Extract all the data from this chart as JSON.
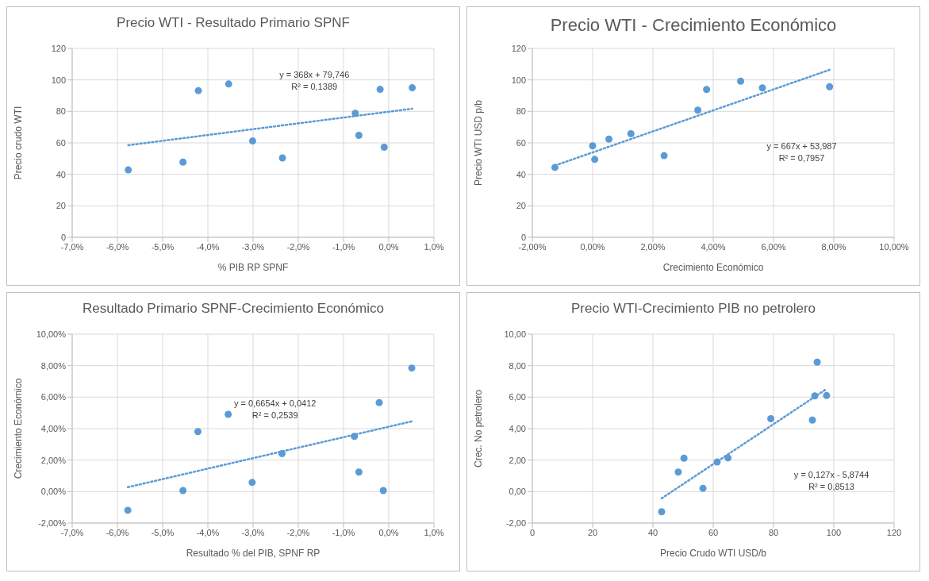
{
  "chart_data": [
    {
      "type": "scatter",
      "title": "Precio WTI - Resultado Primario SPNF",
      "xlabel": "% PIB RP SPNF",
      "ylabel": "Precio crudo WTI",
      "grid": true,
      "xlim": [
        -7,
        1
      ],
      "xticks": [
        {
          "value": -7,
          "label": "-7,0%"
        },
        {
          "value": -6,
          "label": "-6,0%"
        },
        {
          "value": -5,
          "label": "-5,0%"
        },
        {
          "value": -4,
          "label": "-4,0%"
        },
        {
          "value": -3,
          "label": "-3,0%"
        },
        {
          "value": -2,
          "label": "-2,0%"
        },
        {
          "value": -1,
          "label": "-1,0%"
        },
        {
          "value": 0,
          "label": "0,0%"
        },
        {
          "value": 1,
          "label": "1,0%"
        }
      ],
      "ylim": [
        0,
        120
      ],
      "yticks": [
        0,
        20,
        40,
        60,
        80,
        100,
        120
      ],
      "annotations": [
        "y = 368x + 79,746",
        "R² = 0,1389"
      ],
      "series": [
        {
          "marker": "circle",
          "color": "#5b9bd5",
          "x": [
            -5.76,
            -4.55,
            -4.21,
            -3.54,
            -3.01,
            -2.35,
            -0.74,
            -0.66,
            -0.19,
            -0.1,
            0.52
          ],
          "values": [
            42.8,
            47.8,
            93.2,
            97.4,
            61.2,
            50.4,
            78.8,
            64.8,
            94,
            57.2,
            95
          ]
        },
        {
          "type": "line",
          "marker": "none",
          "color": "#5b9bd5",
          "line_style": "dotted",
          "x": [
            -5.76,
            0.52
          ],
          "values": [
            58.5,
            81.7
          ]
        }
      ]
    },
    {
      "type": "scatter",
      "title": "Precio WTI - Crecimiento Económico",
      "xlabel": "Crecimiento Económico",
      "ylabel": "Precio WTI USD p/b",
      "grid": true,
      "xlim": [
        -2,
        10
      ],
      "xticks": [
        {
          "value": -2,
          "label": "-2,00%"
        },
        {
          "value": 0,
          "label": "0,00%"
        },
        {
          "value": 2,
          "label": "2,00%"
        },
        {
          "value": 4,
          "label": "4,00%"
        },
        {
          "value": 6,
          "label": "6,00%"
        },
        {
          "value": 8,
          "label": "8,00%"
        },
        {
          "value": 10,
          "label": "10,00%"
        }
      ],
      "ylim": [
        0,
        120
      ],
      "yticks": [
        0,
        20,
        40,
        60,
        80,
        100,
        120
      ],
      "annotations": [
        "y = 667x + 53,987",
        "R² = 0,7957"
      ],
      "series": [
        {
          "marker": "circle",
          "color": "#5b9bd5",
          "x": [
            -1.25,
            0,
            0.07,
            0.54,
            1.27,
            2.37,
            3.49,
            3.78,
            4.91,
            5.63,
            7.86
          ],
          "values": [
            44.4,
            58.1,
            49.5,
            62.4,
            65.8,
            51.9,
            80.8,
            93.9,
            99.2,
            94.9,
            95.7
          ]
        },
        {
          "type": "line",
          "marker": "none",
          "color": "#5b9bd5",
          "line_style": "dotted",
          "x": [
            -1.25,
            7.86
          ],
          "values": [
            45.6,
            106.4
          ]
        }
      ]
    },
    {
      "type": "scatter",
      "title": "Resultado Primario SPNF-Crecimiento Económico",
      "xlabel": "Resultado % del PIB,  SPNF RP",
      "ylabel": "Crecimiento Económico",
      "grid": true,
      "xlim": [
        -7,
        1
      ],
      "xticks": [
        {
          "value": -7,
          "label": "-7,0%"
        },
        {
          "value": -6,
          "label": "-6,0%"
        },
        {
          "value": -5,
          "label": "-5,0%"
        },
        {
          "value": -4,
          "label": "-4,0%"
        },
        {
          "value": -3,
          "label": "-3,0%"
        },
        {
          "value": -2,
          "label": "-2,0%"
        },
        {
          "value": -1,
          "label": "-1,0%"
        },
        {
          "value": 0,
          "label": "0,0%"
        },
        {
          "value": 1,
          "label": "1,0%"
        }
      ],
      "ylim": [
        -2,
        10
      ],
      "yticks": [
        {
          "value": -2,
          "label": "-2,00%"
        },
        {
          "value": 0,
          "label": "0,00%"
        },
        {
          "value": 2,
          "label": "2,00%"
        },
        {
          "value": 4,
          "label": "4,00%"
        },
        {
          "value": 6,
          "label": "6,00%"
        },
        {
          "value": 8,
          "label": "8,00%"
        },
        {
          "value": 10,
          "label": "10,00%"
        }
      ],
      "annotations": [
        "y = 0,6654x + 0,0412",
        "R² = 0,2539"
      ],
      "series": [
        {
          "marker": "circle",
          "color": "#5b9bd5",
          "x": [
            -5.77,
            -4.55,
            -4.22,
            -3.55,
            -3.02,
            -2.36,
            -0.76,
            -0.66,
            -0.21,
            -0.12,
            0.51
          ],
          "values": [
            -1.19,
            0.07,
            3.81,
            4.91,
            0.58,
            2.41,
            3.51,
            1.24,
            5.65,
            0.07,
            7.85
          ]
        },
        {
          "type": "line",
          "marker": "none",
          "color": "#5b9bd5",
          "line_style": "dotted",
          "x": [
            -5.77,
            0.51
          ],
          "values": [
            0.28,
            4.46
          ]
        }
      ]
    },
    {
      "type": "scatter",
      "title": "Precio WTI-Crecimiento PIB no petrolero",
      "xlabel": "Precio Crudo WTI USD/b",
      "ylabel": "Crec. No petrolero",
      "grid": true,
      "xlim": [
        0,
        120
      ],
      "xticks": [
        0,
        20,
        40,
        60,
        80,
        100,
        120
      ],
      "ylim": [
        -2,
        10
      ],
      "yticks": [
        {
          "value": -2,
          "label": "-2,00"
        },
        {
          "value": 0,
          "label": "0,00"
        },
        {
          "value": 2,
          "label": "2,00"
        },
        {
          "value": 4,
          "label": "4,00"
        },
        {
          "value": 6,
          "label": "6,00"
        },
        {
          "value": 8,
          "label": "8,00"
        },
        {
          "value": 10,
          "label": "10,00"
        }
      ],
      "annotations": [
        "y = 0,127x - 5,8744",
        "R² = 0,8513"
      ],
      "series": [
        {
          "marker": "circle",
          "color": "#5b9bd5",
          "x": [
            42.9,
            48.4,
            50.3,
            56.6,
            61.3,
            64.9,
            79.1,
            92.9,
            93.7,
            94.5,
            97.6
          ],
          "values": [
            -1.28,
            1.24,
            2.12,
            0.21,
            1.88,
            2.14,
            4.63,
            4.54,
            6.08,
            8.22,
            6.1
          ]
        },
        {
          "type": "line",
          "marker": "none",
          "color": "#5b9bd5",
          "line_style": "dotted",
          "x": [
            42.9,
            97.6
          ],
          "values": [
            -0.43,
            6.52
          ]
        }
      ]
    }
  ]
}
